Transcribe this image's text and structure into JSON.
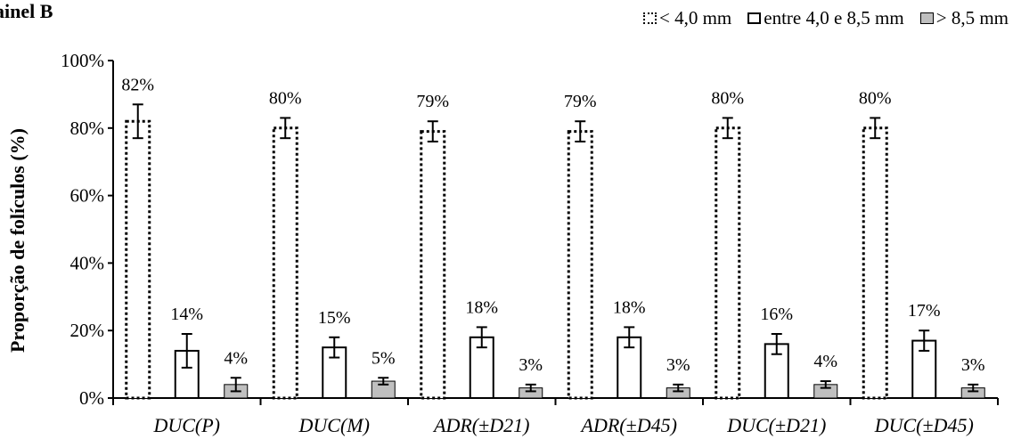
{
  "panel_title": "ainel B",
  "chart_data": {
    "type": "bar",
    "categories": [
      "DUC(P)",
      "DUC(M)",
      "ADR(±D21)",
      "ADR(±D45)",
      "DUC(±D21)",
      "DUC(±D45)"
    ],
    "ylabel": "Proporção de folículos (%)",
    "xlabel": "",
    "ylim": [
      0,
      100
    ],
    "yticks": [
      "0%",
      "20%",
      "40%",
      "60%",
      "80%",
      "100%"
    ],
    "grid": false,
    "legend_position": "top-right",
    "series": [
      {
        "name": "< 4,0 mm",
        "style": "dotted",
        "fill": "#ffffff",
        "values": [
          82,
          80,
          79,
          79,
          80,
          80
        ],
        "errors": [
          5,
          3,
          3,
          3,
          3,
          3
        ],
        "labels": [
          "82%",
          "80%",
          "79%",
          "79%",
          "80%",
          "80%"
        ]
      },
      {
        "name": "entre 4,0 e 8,5 mm",
        "style": "solid",
        "fill": "#ffffff",
        "values": [
          14,
          15,
          18,
          18,
          16,
          17
        ],
        "errors": [
          5,
          3,
          3,
          3,
          3,
          3
        ],
        "labels": [
          "14%",
          "15%",
          "18%",
          "18%",
          "16%",
          "17%"
        ]
      },
      {
        "name": "> 8,5 mm",
        "style": "gray",
        "fill": "#bfbfbf",
        "values": [
          4,
          5,
          3,
          3,
          4,
          3
        ],
        "errors": [
          2,
          1,
          1,
          1,
          1,
          1
        ],
        "labels": [
          "4%",
          "5%",
          "3%",
          "3%",
          "4%",
          "3%"
        ]
      }
    ]
  }
}
